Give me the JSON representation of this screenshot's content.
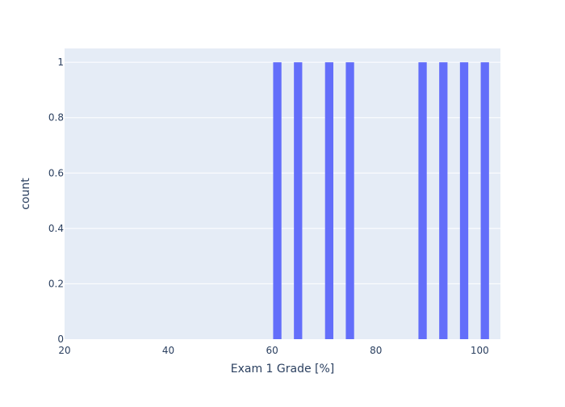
{
  "chart_data": {
    "type": "bar",
    "title": "",
    "xlabel": "Exam 1 Grade [%]",
    "ylabel": "count",
    "xlim": [
      20,
      104
    ],
    "ylim": [
      0,
      1.05
    ],
    "bin_width": 2,
    "bins": [
      {
        "x_start": 60,
        "x_end": 62,
        "count": 1
      },
      {
        "x_start": 64,
        "x_end": 66,
        "count": 1
      },
      {
        "x_start": 70,
        "x_end": 72,
        "count": 1
      },
      {
        "x_start": 74,
        "x_end": 76,
        "count": 1
      },
      {
        "x_start": 88,
        "x_end": 90,
        "count": 1
      },
      {
        "x_start": 92,
        "x_end": 94,
        "count": 1
      },
      {
        "x_start": 96,
        "x_end": 98,
        "count": 1
      },
      {
        "x_start": 100,
        "x_end": 102,
        "count": 1
      }
    ],
    "x_ticks": [
      20,
      40,
      60,
      80,
      100
    ],
    "x_tick_labels": [
      "20",
      "40",
      "60",
      "80",
      "100"
    ],
    "y_ticks": [
      0,
      0.2,
      0.4,
      0.6,
      0.8,
      1
    ],
    "y_tick_labels": [
      "0",
      "0.2",
      "0.4",
      "0.6",
      "0.8",
      "1"
    ],
    "grid": true,
    "colors": {
      "bar": "#636efa",
      "plot_background": "#e5ecf6",
      "gridline": "#ffffff",
      "text": "#2a3f5f"
    }
  }
}
